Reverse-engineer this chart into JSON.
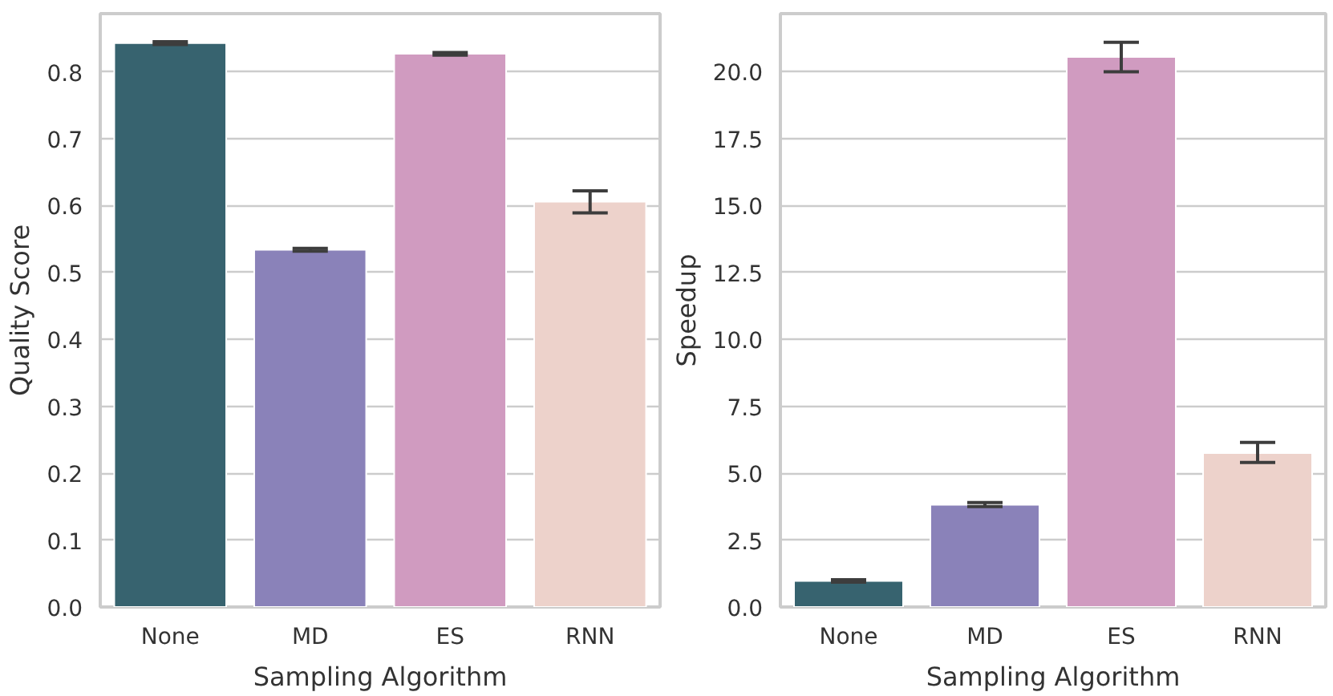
{
  "chart_data": [
    {
      "type": "bar",
      "categories": [
        "None",
        "MD",
        "ES",
        "RNN"
      ],
      "values": [
        0.843,
        0.534,
        0.827,
        0.606
      ],
      "errors": [
        [
          0.841,
          0.845
        ],
        [
          0.532,
          0.536
        ],
        [
          0.825,
          0.829
        ],
        [
          0.589,
          0.622
        ]
      ],
      "colors": [
        "#37636f",
        "#8a82b9",
        "#d09bc0",
        "#edd2cb"
      ],
      "xlabel": "Sampling Algorithm",
      "ylabel": "Quality Score",
      "ylim": [
        0,
        0.887
      ],
      "yticks": [
        "0.0",
        0.1,
        0.2,
        0.3,
        0.4,
        0.5,
        0.6,
        0.7,
        0.8
      ],
      "grid": "y"
    },
    {
      "type": "bar",
      "categories": [
        "None",
        "MD",
        "ES",
        "RNN"
      ],
      "values": [
        0.97,
        3.82,
        20.55,
        5.75
      ],
      "errors": [
        [
          0.93,
          1.02
        ],
        [
          3.75,
          3.9
        ],
        [
          20.0,
          21.1
        ],
        [
          5.4,
          6.15
        ]
      ],
      "colors": [
        "#37636f",
        "#8a82b9",
        "#d09bc0",
        "#edd2cb"
      ],
      "xlabel": "Sampling Algorithm",
      "ylabel": "Speedup",
      "ylim": [
        0,
        22.17
      ],
      "yticks": [
        {
          "value": 0,
          "label": "0.0"
        },
        2.5,
        {
          "value": 5,
          "label": "5.0"
        },
        7.5,
        {
          "value": 10,
          "label": "10.0"
        },
        12.5,
        {
          "value": 15,
          "label": "15.0"
        },
        17.5,
        {
          "value": 20,
          "label": "20.0"
        }
      ],
      "grid": "y"
    }
  ]
}
